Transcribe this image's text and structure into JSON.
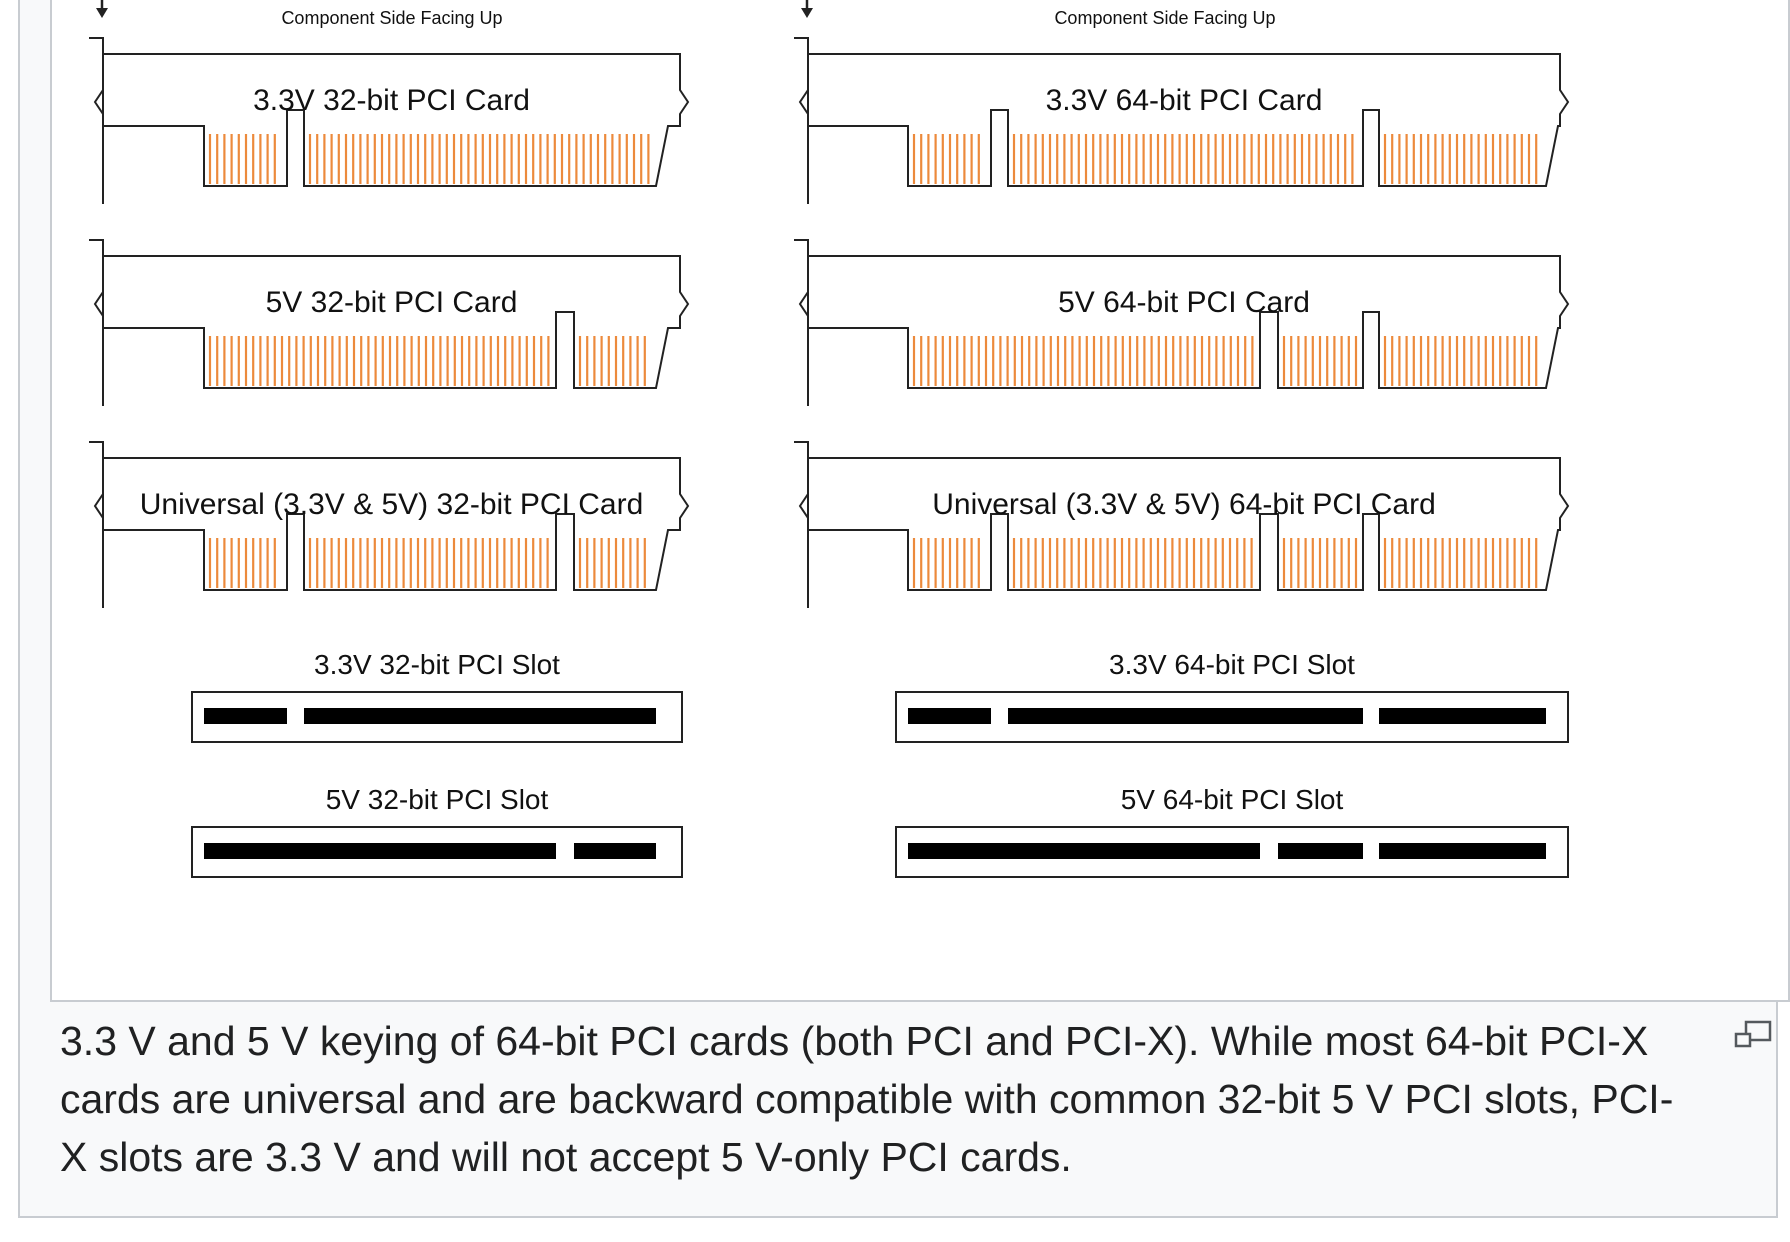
{
  "figure": {
    "orientation_note": "Component Side Facing Up",
    "cards": [
      {
        "label": "3.3V 32-bit PCI Card",
        "bits": 32,
        "key": "3.3V"
      },
      {
        "label": "3.3V 64-bit PCI Card",
        "bits": 64,
        "key": "3.3V"
      },
      {
        "label": "5V 32-bit PCI Card",
        "bits": 32,
        "key": "5V"
      },
      {
        "label": "5V 64-bit PCI Card",
        "bits": 64,
        "key": "5V"
      },
      {
        "label": "Universal (3.3V & 5V) 32-bit PCI Card",
        "bits": 32,
        "key": "universal"
      },
      {
        "label": "Universal (3.3V & 5V) 64-bit PCI Card",
        "bits": 64,
        "key": "universal"
      }
    ],
    "slots": [
      {
        "label": "3.3V 32-bit PCI Slot",
        "bits": 32,
        "key": "3.3V"
      },
      {
        "label": "3.3V 64-bit PCI Slot",
        "bits": 64,
        "key": "3.3V"
      },
      {
        "label": "5V 32-bit PCI Slot",
        "bits": 32,
        "key": "5V"
      },
      {
        "label": "5V 64-bit PCI Slot",
        "bits": 64,
        "key": "5V"
      }
    ],
    "colors": {
      "contact": "#ec8a3c",
      "outline": "#222222",
      "slot_fill": "#000000"
    }
  },
  "caption": {
    "text": "3.3 V and 5 V keying of 64-bit PCI cards (both PCI and PCI-X). While most 64-bit PCI-X cards are universal and are backward compatible with common 32-bit 5 V PCI slots, PCI-X slots are 3.3 V and will not accept 5 V-only PCI cards."
  },
  "icons": {
    "magnify": "magnify-icon"
  }
}
